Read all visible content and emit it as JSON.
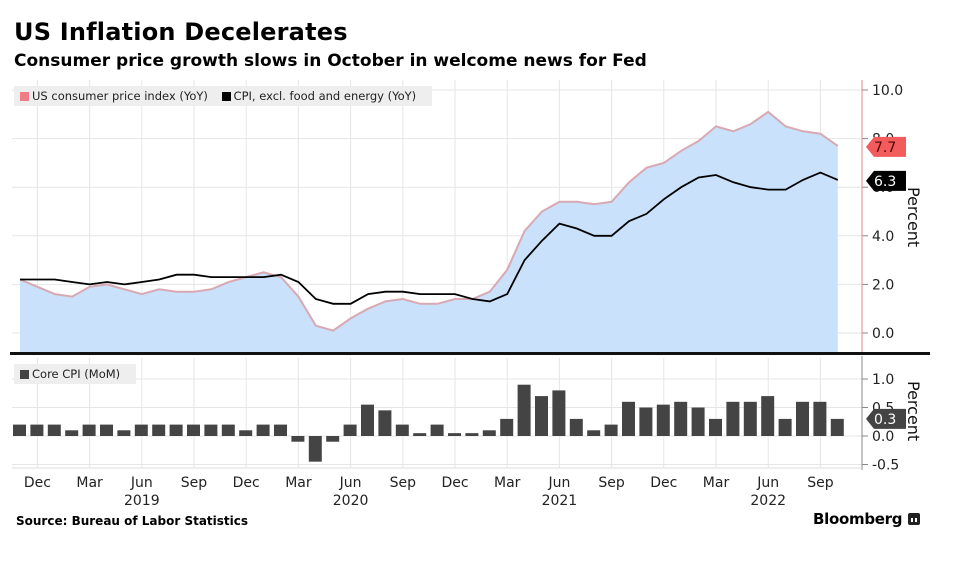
{
  "header": {
    "title": "US Inflation Decelerates",
    "subtitle": "Consumer price growth slows in October in welcome news for Fed"
  },
  "footer": {
    "source": "Source: Bureau of Labor Statistics",
    "brand": "Bloomberg"
  },
  "colors": {
    "cpi_line": "#d8a9b3",
    "cpi_fill": "#c9e1fb",
    "cpi_tag": "#f25c5c",
    "core_line": "#000000",
    "bars": "#444444",
    "axis_accent": "#e08a8a",
    "grid": "#e6e6e6"
  },
  "chart_data": [
    {
      "type": "area",
      "title": "US Inflation Decelerates",
      "ylabel": "Percent",
      "ylim": [
        -0.8,
        10.5
      ],
      "yticks": [
        "10.0",
        "8.0",
        "6.0",
        "4.0",
        "2.0",
        "0.0"
      ],
      "ytick_values": [
        10,
        8,
        6,
        4,
        2,
        0
      ],
      "grid": true,
      "legend_position": "top-left",
      "x": [
        "2018-11",
        "2018-12",
        "2019-01",
        "2019-02",
        "2019-03",
        "2019-04",
        "2019-05",
        "2019-06",
        "2019-07",
        "2019-08",
        "2019-09",
        "2019-10",
        "2019-11",
        "2019-12",
        "2020-01",
        "2020-02",
        "2020-03",
        "2020-04",
        "2020-05",
        "2020-06",
        "2020-07",
        "2020-08",
        "2020-09",
        "2020-10",
        "2020-11",
        "2020-12",
        "2021-01",
        "2021-02",
        "2021-03",
        "2021-04",
        "2021-05",
        "2021-06",
        "2021-07",
        "2021-08",
        "2021-09",
        "2021-10",
        "2021-11",
        "2021-12",
        "2022-01",
        "2022-02",
        "2022-03",
        "2022-04",
        "2022-05",
        "2022-06",
        "2022-07",
        "2022-08",
        "2022-09",
        "2022-10"
      ],
      "series": [
        {
          "name": "US consumer price index (YoY)",
          "style": "area",
          "last_value_label": "7.7",
          "values": [
            2.2,
            1.9,
            1.6,
            1.5,
            1.9,
            2.0,
            1.8,
            1.6,
            1.8,
            1.7,
            1.7,
            1.8,
            2.1,
            2.3,
            2.5,
            2.3,
            1.5,
            0.3,
            0.1,
            0.6,
            1.0,
            1.3,
            1.4,
            1.2,
            1.2,
            1.4,
            1.4,
            1.7,
            2.6,
            4.2,
            5.0,
            5.4,
            5.4,
            5.3,
            5.4,
            6.2,
            6.8,
            7.0,
            7.5,
            7.9,
            8.5,
            8.3,
            8.6,
            9.1,
            8.5,
            8.3,
            8.2,
            7.7
          ]
        },
        {
          "name": "CPI, excl. food and energy (YoY)",
          "style": "line",
          "last_value_label": "6.3",
          "values": [
            2.2,
            2.2,
            2.2,
            2.1,
            2.0,
            2.1,
            2.0,
            2.1,
            2.2,
            2.4,
            2.4,
            2.3,
            2.3,
            2.3,
            2.3,
            2.4,
            2.1,
            1.4,
            1.2,
            1.2,
            1.6,
            1.7,
            1.7,
            1.6,
            1.6,
            1.6,
            1.4,
            1.3,
            1.6,
            3.0,
            3.8,
            4.5,
            4.3,
            4.0,
            4.0,
            4.6,
            4.9,
            5.5,
            6.0,
            6.4,
            6.5,
            6.2,
            6.0,
            5.9,
            5.9,
            6.3,
            6.6,
            6.3
          ]
        }
      ]
    },
    {
      "type": "bar",
      "ylabel": "Percent",
      "ylim": [
        -0.55,
        1.2
      ],
      "yticks": [
        "1.0",
        "0.5",
        "0.0",
        "-0.5"
      ],
      "ytick_values": [
        1.0,
        0.5,
        0.0,
        -0.5
      ],
      "grid": true,
      "legend_position": "top-left",
      "series": [
        {
          "name": "Core CPI (MoM)",
          "last_value_label": "0.3",
          "values": [
            0.2,
            0.2,
            0.2,
            0.1,
            0.2,
            0.2,
            0.1,
            0.2,
            0.2,
            0.2,
            0.2,
            0.2,
            0.2,
            0.1,
            0.2,
            0.2,
            -0.1,
            -0.45,
            -0.1,
            0.2,
            0.55,
            0.45,
            0.2,
            0.05,
            0.2,
            0.05,
            0.05,
            0.1,
            0.3,
            0.9,
            0.7,
            0.8,
            0.3,
            0.1,
            0.2,
            0.6,
            0.5,
            0.55,
            0.6,
            0.5,
            0.3,
            0.6,
            0.6,
            0.7,
            0.3,
            0.6,
            0.6,
            0.3
          ]
        }
      ]
    }
  ],
  "x_axis": {
    "ticks": [
      {
        "month": "Dec",
        "index": 1
      },
      {
        "month": "Mar",
        "index": 4
      },
      {
        "month": "Jun",
        "index": 7,
        "year": "2019"
      },
      {
        "month": "Sep",
        "index": 10
      },
      {
        "month": "Dec",
        "index": 13
      },
      {
        "month": "Mar",
        "index": 16
      },
      {
        "month": "Jun",
        "index": 19,
        "year": "2020"
      },
      {
        "month": "Sep",
        "index": 22
      },
      {
        "month": "Dec",
        "index": 25
      },
      {
        "month": "Mar",
        "index": 28
      },
      {
        "month": "Jun",
        "index": 31,
        "year": "2021"
      },
      {
        "month": "Sep",
        "index": 34
      },
      {
        "month": "Dec",
        "index": 37
      },
      {
        "month": "Mar",
        "index": 40
      },
      {
        "month": "Jun",
        "index": 43,
        "year": "2022"
      },
      {
        "month": "Sep",
        "index": 46
      }
    ]
  }
}
